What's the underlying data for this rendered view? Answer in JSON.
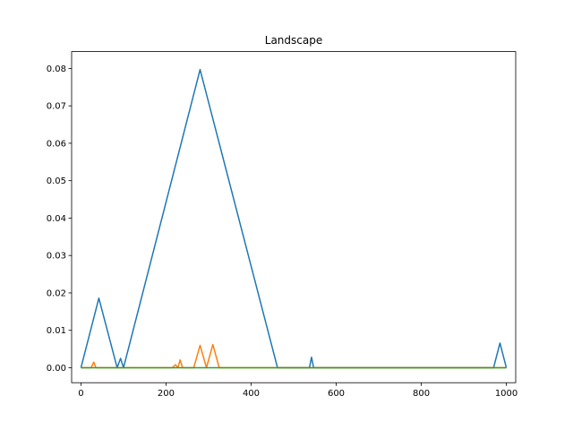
{
  "chart_data": {
    "type": "line",
    "title": "Landscape",
    "xlabel": "",
    "ylabel": "",
    "xlim": [
      -22,
      1022
    ],
    "ylim": [
      -0.004,
      0.0845
    ],
    "xticks": [
      0,
      200,
      400,
      600,
      800,
      1000
    ],
    "xtick_labels": [
      "0",
      "200",
      "400",
      "600",
      "800",
      "1000"
    ],
    "yticks": [
      0.0,
      0.01,
      0.02,
      0.03,
      0.04,
      0.05,
      0.06,
      0.07,
      0.08
    ],
    "ytick_labels": [
      "0.00",
      "0.01",
      "0.02",
      "0.03",
      "0.04",
      "0.05",
      "0.06",
      "0.07",
      "0.08"
    ],
    "grid": false,
    "legend": false,
    "series": [
      {
        "color": "#1f77b4",
        "x": [
          0,
          42,
          85,
          93,
          100,
          280,
          462,
          537,
          542,
          547,
          970,
          985,
          1000
        ],
        "y": [
          0.0,
          0.0186,
          0.0,
          0.0025,
          0.0,
          0.0797,
          0.0,
          0.0,
          0.0028,
          0.0,
          0.0,
          0.0066,
          0.0
        ]
      },
      {
        "color": "#ff7f0e",
        "x": [
          0,
          24,
          30,
          35,
          215,
          222,
          228,
          233,
          239,
          265,
          280,
          295,
          310,
          325,
          1000
        ],
        "y": [
          0.0,
          0.0,
          0.0015,
          0.0,
          0.0,
          0.0008,
          0.0,
          0.0021,
          0.0,
          0.0,
          0.006,
          0.0,
          0.0062,
          0.0,
          0.0
        ]
      },
      {
        "color": "#2ca02c",
        "x": [
          0,
          200,
          400,
          600,
          800,
          1000
        ],
        "y": [
          0.0,
          0.0,
          0.0,
          0.0,
          0.0,
          0.0
        ]
      }
    ]
  }
}
